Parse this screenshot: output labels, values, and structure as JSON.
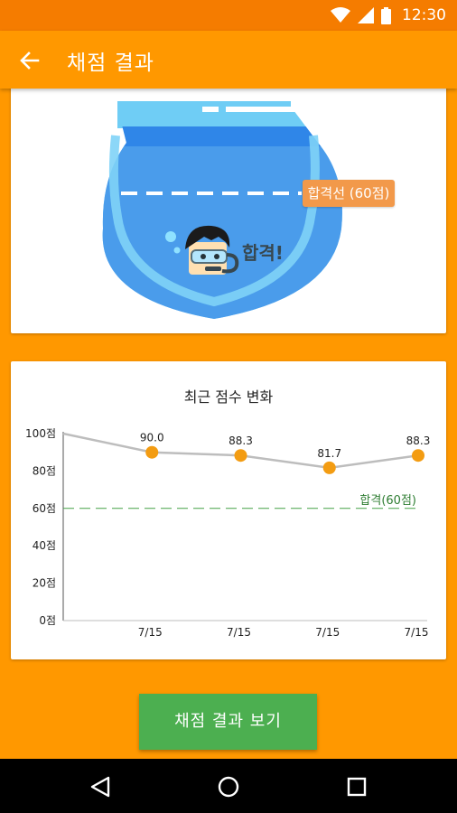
{
  "status_bar": {
    "time": "12:30",
    "icons": [
      "wifi-icon",
      "cellular-signal-icon",
      "battery-icon"
    ]
  },
  "app_bar": {
    "title": "채점 결과",
    "back_icon": "arrow-left-icon"
  },
  "result_card": {
    "pass_line_label": "합격선 (60점)",
    "result_text": "합격!"
  },
  "chart_card": {
    "title": "최근 점수 변화",
    "chart_data": {
      "type": "line",
      "title": "최근 점수 변화",
      "categories": [
        "",
        "7/15",
        "7/15",
        "7/15",
        "7/15"
      ],
      "values": [
        100,
        90.0,
        88.3,
        81.7,
        88.3
      ],
      "data_labels": [
        "",
        "90.0",
        "88.3",
        "81.7",
        "88.3"
      ],
      "y_tick_labels": [
        "0점",
        "20점",
        "40점",
        "60점",
        "80점",
        "100점"
      ],
      "y_ticks": [
        0,
        20,
        40,
        60,
        80,
        100
      ],
      "ylim": [
        0,
        100
      ],
      "threshold": {
        "value": 60,
        "label": "합격(60점)",
        "color": "#2E7D32"
      },
      "colors": {
        "line": "#BDBDBD",
        "point": "#F39C12"
      },
      "grid": false
    }
  },
  "cta_button": {
    "label": "채점 결과 보기"
  },
  "nav_bar": {
    "buttons": [
      "back-triangle-icon",
      "home-circle-icon",
      "recents-square-icon"
    ]
  },
  "colors": {
    "primary": "#FF9800",
    "status_bar": "#F57C00",
    "accent": "#4CAF50",
    "badge": "#F2994A"
  }
}
